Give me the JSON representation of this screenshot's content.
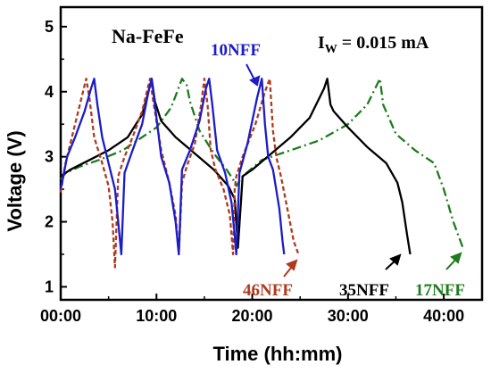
{
  "chart_data": {
    "type": "line",
    "title": "",
    "xlabel": "Time (hh:mm)",
    "ylabel": "Voltage (V)",
    "x_unit": "hh:mm",
    "xlim": [
      "00:00",
      "44:00"
    ],
    "ylim": [
      0.8,
      5.3
    ],
    "x_ticks": [
      "00:00",
      "10:00",
      "20:00",
      "30:00",
      "40:00"
    ],
    "y_ticks": [
      1,
      2,
      3,
      4,
      5
    ],
    "grid": false,
    "legend": "none",
    "annotations": {
      "sample": "Na-FeFe",
      "current_prefix": "I",
      "current_sub": "W",
      "current_value": " = 0.015 mA"
    },
    "series": [
      {
        "name": "17NFF",
        "color": "#1e7b1e",
        "style": "dash-dot",
        "x": [
          "00:00",
          "00:30",
          "02:00",
          "04:00",
          "06:30",
          "08:00",
          "10:00",
          "11:30",
          "12:10",
          "12:40",
          "13:10",
          "13:30",
          "14:30",
          "16:00",
          "17:20",
          "18:00",
          "18:20",
          "19:00",
          "21:00",
          "24:00",
          "27:00",
          "30:00",
          "32:00",
          "33:00",
          "33:20",
          "33:40",
          "35:00",
          "37:00",
          "39:00",
          "40:00",
          "41:00",
          "42:00"
        ],
        "y": [
          2.65,
          2.75,
          2.85,
          2.95,
          3.1,
          3.25,
          3.45,
          3.75,
          4.0,
          4.2,
          4.1,
          3.85,
          3.4,
          3.05,
          2.8,
          2.65,
          2.55,
          2.7,
          2.95,
          3.1,
          3.25,
          3.5,
          3.8,
          4.1,
          4.2,
          3.8,
          3.35,
          3.1,
          2.9,
          2.5,
          2.0,
          1.6
        ]
      },
      {
        "name": "35NFF",
        "color": "#000000",
        "style": "solid",
        "x": [
          "00:00",
          "01:00",
          "03:00",
          "05:00",
          "07:00",
          "08:30",
          "09:10",
          "09:30",
          "09:50",
          "10:30",
          "12:00",
          "14:00",
          "16:00",
          "17:30",
          "18:10",
          "18:30",
          "19:00",
          "20:00",
          "22:00",
          "24:00",
          "26:00",
          "27:30",
          "27:50",
          "28:10",
          "28:30",
          "30:00",
          "32:00",
          "34:00",
          "35:10",
          "35:40",
          "36:10",
          "36:30"
        ],
        "y": [
          2.7,
          2.8,
          2.95,
          3.1,
          3.3,
          3.65,
          4.0,
          4.2,
          3.85,
          3.55,
          3.3,
          3.05,
          2.8,
          2.55,
          2.35,
          1.6,
          2.7,
          2.8,
          3.05,
          3.3,
          3.6,
          4.05,
          4.2,
          3.8,
          3.7,
          3.45,
          3.15,
          2.9,
          2.6,
          2.3,
          1.8,
          1.5
        ]
      },
      {
        "name": "46NFF",
        "color": "#b03a1e",
        "style": "short-dash",
        "x": [
          "00:00",
          "00:30",
          "01:30",
          "02:20",
          "02:40",
          "03:00",
          "03:30",
          "04:20",
          "05:00",
          "05:25",
          "05:40",
          "06:00",
          "06:40",
          "07:30",
          "08:30",
          "09:00",
          "09:20",
          "09:40",
          "10:30",
          "11:20",
          "12:00",
          "12:20",
          "12:40",
          "13:10",
          "14:00",
          "14:40",
          "15:00",
          "15:20",
          "15:40",
          "16:10",
          "17:00",
          "17:40",
          "18:00",
          "18:10",
          "18:20",
          "19:00",
          "20:20",
          "21:20",
          "21:50",
          "22:10",
          "22:30",
          "23:00",
          "23:40",
          "24:20",
          "24:50"
        ],
        "y": [
          2.45,
          2.9,
          3.5,
          4.0,
          4.2,
          3.9,
          3.3,
          2.9,
          2.55,
          2.0,
          1.3,
          2.7,
          3.0,
          3.3,
          3.7,
          4.0,
          4.2,
          3.85,
          3.1,
          2.6,
          2.1,
          1.5,
          2.6,
          2.85,
          3.2,
          3.8,
          4.2,
          3.8,
          3.1,
          2.8,
          2.5,
          2.1,
          1.5,
          2.5,
          2.7,
          3.0,
          3.5,
          4.0,
          4.2,
          3.4,
          3.0,
          2.7,
          2.2,
          1.7,
          1.5
        ]
      },
      {
        "name": "10NFF",
        "color": "#1c1cc8",
        "style": "solid",
        "x": [
          "00:00",
          "00:40",
          "01:30",
          "02:30",
          "03:10",
          "03:30",
          "03:50",
          "04:20",
          "05:00",
          "05:40",
          "06:00",
          "06:20",
          "06:40",
          "07:30",
          "08:30",
          "09:10",
          "09:30",
          "09:50",
          "10:30",
          "11:20",
          "12:00",
          "12:20",
          "12:40",
          "13:30",
          "14:30",
          "15:10",
          "15:30",
          "15:50",
          "16:20",
          "17:10",
          "17:50",
          "18:10",
          "18:20",
          "18:40",
          "19:30",
          "20:30",
          "21:00",
          "21:20",
          "21:40",
          "22:10",
          "22:50",
          "23:10",
          "23:20"
        ],
        "y": [
          2.5,
          3.0,
          3.3,
          3.7,
          4.05,
          4.2,
          3.8,
          3.3,
          2.9,
          2.5,
          2.0,
          1.5,
          2.75,
          3.1,
          3.5,
          4.0,
          4.2,
          3.8,
          3.0,
          2.6,
          2.0,
          1.5,
          2.8,
          3.1,
          3.55,
          4.05,
          4.2,
          3.8,
          3.1,
          2.75,
          2.3,
          1.8,
          1.5,
          2.75,
          3.2,
          3.9,
          4.2,
          3.5,
          3.0,
          2.8,
          2.2,
          1.7,
          1.5
        ]
      }
    ],
    "labels": {
      "s10": "10NFF",
      "s46": "46NFF",
      "s35": "35NFF",
      "s17": "17NFF"
    }
  }
}
